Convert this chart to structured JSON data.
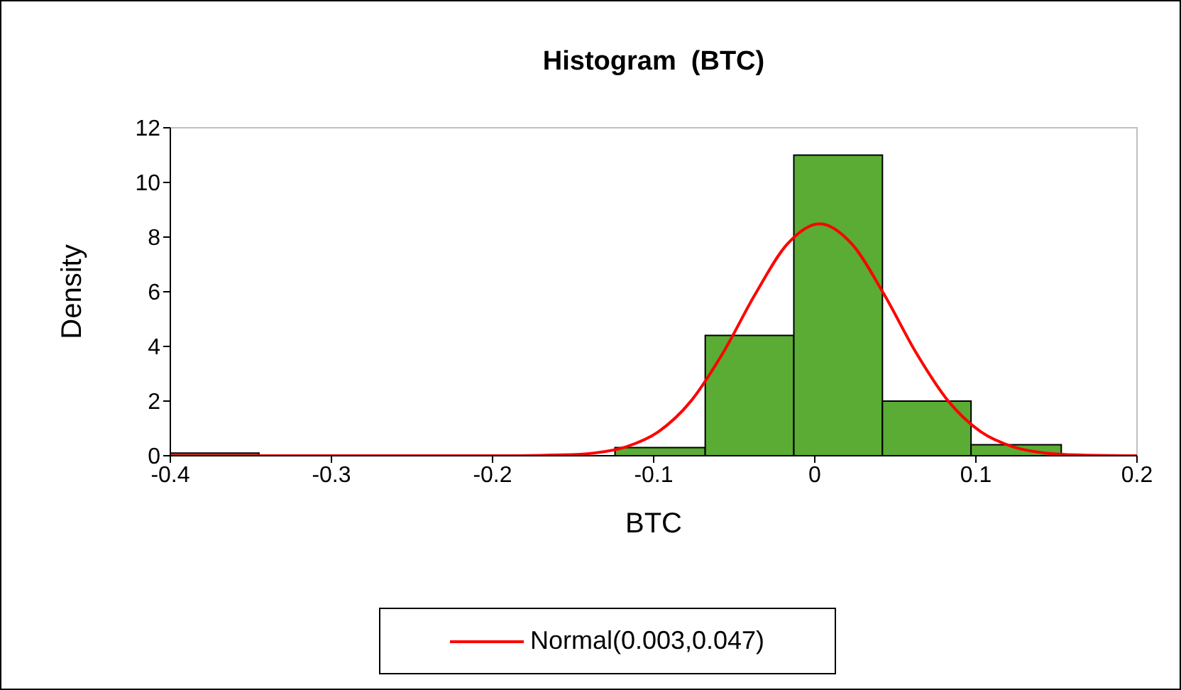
{
  "chart_data": {
    "type": "histogram",
    "title": "Histogram  (BTC)",
    "xlabel": "BTC",
    "ylabel": "Density",
    "bins": [
      -0.4,
      -0.345,
      -0.124,
      -0.068,
      -0.013,
      0.042,
      0.097,
      0.153
    ],
    "values": [
      0.1,
      0,
      0.3,
      4.4,
      11,
      2,
      0.4
    ],
    "color": "#5aac34",
    "series": [
      {
        "type": "line",
        "name": "Normal(0.003,0.047)",
        "color": "#ff0000",
        "x": [
          -0.4,
          -0.2,
          -0.157,
          -0.137,
          -0.117,
          -0.097,
          -0.077,
          -0.057,
          -0.037,
          -0.017,
          0.003,
          0.023,
          0.043,
          0.063,
          0.083,
          0.103,
          0.123,
          0.143,
          0.163,
          0.2
        ],
        "values": [
          0,
          0,
          0.03,
          0.1,
          0.33,
          0.88,
          1.99,
          3.76,
          5.91,
          7.75,
          8.49,
          7.75,
          5.91,
          3.76,
          1.99,
          0.88,
          0.33,
          0.1,
          0.03,
          0
        ]
      }
    ],
    "xlim": [
      -0.4,
      0.2
    ],
    "xticks": [
      -0.4,
      -0.3,
      -0.2,
      -0.1,
      0,
      0.1,
      0.2
    ],
    "ylim": [
      0,
      12
    ],
    "yticks": [
      0,
      2,
      4,
      6,
      8,
      10,
      12
    ],
    "legend": "bottom",
    "grid": false,
    "marker": "none"
  }
}
